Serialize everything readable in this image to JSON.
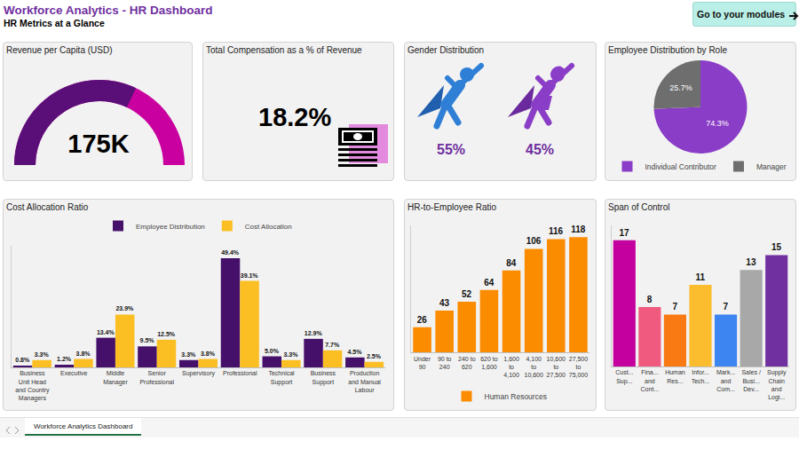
{
  "header": {
    "title": "Workforce Analytics - HR Dashboard",
    "subtitle": "HR Metrics at a Glance"
  },
  "button": "Go to your modules",
  "tab": "Workforce Analytics Dashboard",
  "cards": [
    {
      "title": "Total Compensation as a % of Revenue",
      "value": "18.2%"
    },
    {
      "title": "Gender Distribution",
      "labels": [
        "55%",
        "45%"
      ]
    }
  ],
  "chart_data": [
    {
      "type": "gauge",
      "title": "Revenue per Capita (USD)",
      "values": [
        175000
      ],
      "value_labels": [
        "175K"
      ],
      "ylim": [
        0,
        273000
      ],
      "tick_labels": false,
      "colors": [
        "#5a0f78",
        "#c9009f"
      ]
    },
    {
      "type": "pie",
      "title": "Employee Distribution by Role",
      "categories": [
        "Individual Contributor",
        "Manager"
      ],
      "values": [
        74.3,
        25.7
      ],
      "value_labels": [
        "74.3%",
        "25.7%"
      ],
      "colors": [
        "#8a3dc6",
        "#6e6e6e"
      ],
      "legend": "bottom",
      "data_labels": true
    },
    {
      "type": "bar",
      "title": "Cost Allocation Ratio",
      "categories": [
        "Business Unit Head and Country Managers",
        "Executive",
        "Middle Manager",
        "Senior Professional",
        "Supervisory",
        "Professional",
        "Technical Support",
        "Business Support",
        "Production and Manual Labour"
      ],
      "series": [
        {
          "name": "Employee Distribution",
          "color": "#45106a",
          "values": [
            0.8,
            1.2,
            13.4,
            9.5,
            3.3,
            49.4,
            5.0,
            12.9,
            4.5
          ],
          "value_labels": [
            "0.8%",
            "1.2%",
            "13.4%",
            "9.5%",
            "3.3%",
            "49.4%",
            "5.0%",
            "12.9%",
            "4.5%"
          ]
        },
        {
          "name": "Cost Allocation",
          "color": "#fbbf24",
          "values": [
            3.3,
            3.8,
            23.9,
            12.5,
            3.8,
            39.1,
            3.3,
            7.7,
            2.5
          ],
          "value_labels": [
            "3.3%",
            "3.8%",
            "23.9%",
            "12.5%",
            "3.8%",
            "39.1%",
            "3.3%",
            "7.7%",
            "2.5%"
          ]
        }
      ],
      "ylim": [
        0,
        55
      ],
      "tick_labels": "x",
      "grid": false,
      "legend": "top",
      "data_labels": true
    },
    {
      "type": "bar",
      "title": "HR-to-Employee Ratio",
      "categories": [
        "Under 90",
        "90 to 240",
        "240 to 620",
        "620 to 1,600",
        "1,600 to 4,100",
        "4,100 to 10,600",
        "10,600 to 27,500",
        "27,500 to 75,000"
      ],
      "series": [
        {
          "name": "Human Resources",
          "color": "#fb8c00",
          "values": [
            26,
            43,
            52,
            64,
            84,
            106,
            116,
            118
          ]
        }
      ],
      "ylim": [
        0,
        130
      ],
      "tick_labels": "x",
      "grid": false,
      "legend": "bottom",
      "data_labels": true
    },
    {
      "type": "bar",
      "title": "Span of Control",
      "categories": [
        "Cust... Sup...",
        "Fina... and Cont...",
        "Human Res...",
        "Infor... Tech...",
        "Mark... and Com...",
        "Sales / Busi... Dev...",
        "Supply Chain and Logi..."
      ],
      "values": [
        17,
        8,
        7,
        11,
        7,
        13,
        15
      ],
      "colors": [
        "#c4009f",
        "#f05a7e",
        "#f97a12",
        "#fbbc2e",
        "#3d85f0",
        "#a8a8a8",
        "#7030a0"
      ],
      "ylim": [
        0,
        19
      ],
      "tick_labels": "x",
      "grid": false,
      "data_labels": true
    }
  ]
}
